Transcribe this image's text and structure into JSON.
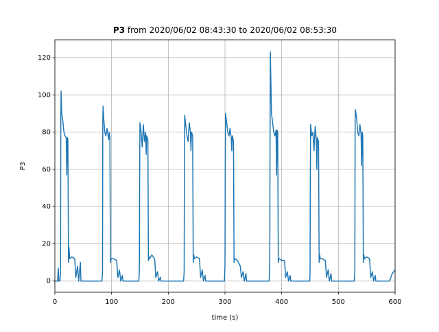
{
  "chart_data": {
    "type": "line",
    "title": [
      "P3",
      "from 2020/06/02 08:43:30 to 2020/06/02 08:53:30"
    ],
    "xlabel": "time (s)",
    "ylabel": "P3",
    "color": "#1f77b4",
    "grid": true,
    "xlim": [
      0,
      600
    ],
    "ylim": [
      -6,
      129.6
    ],
    "xticks": [
      0,
      100,
      200,
      300,
      400,
      500,
      600
    ],
    "yticks": [
      0,
      20,
      40,
      60,
      80,
      100,
      120
    ],
    "x": [
      0,
      5,
      6,
      7,
      9,
      10,
      10.5,
      11,
      12,
      14,
      16,
      18,
      20,
      21,
      22,
      23,
      24,
      25,
      26,
      30,
      35,
      37,
      40,
      42,
      45,
      46,
      55,
      83,
      84,
      84.5,
      85,
      86,
      88,
      90,
      92,
      94,
      95,
      96,
      97,
      98,
      99,
      100,
      104,
      109,
      111,
      114,
      116,
      119,
      120,
      146,
      148,
      149,
      149.5,
      150,
      152,
      154,
      156,
      158,
      160,
      161,
      162,
      164,
      165,
      166,
      167,
      171,
      176,
      178,
      181,
      183,
      186,
      187,
      226,
      227,
      228,
      228.5,
      229,
      231,
      233,
      235,
      237,
      239,
      240,
      241,
      243,
      244,
      245,
      246,
      250,
      255,
      257,
      260,
      262,
      265,
      266,
      298,
      299,
      300,
      300.5,
      301,
      303,
      305,
      307,
      309,
      311,
      312,
      313,
      315,
      316,
      317,
      318,
      322,
      327,
      329,
      332,
      334,
      337,
      338,
      377,
      378,
      379,
      379.5,
      380,
      382,
      384,
      386,
      388,
      390,
      391,
      392,
      393,
      394,
      395,
      396,
      400,
      405,
      407,
      410,
      412,
      415,
      416,
      449,
      449.5,
      450,
      450.5,
      451,
      453,
      455,
      457,
      459,
      461,
      462,
      463,
      465,
      466,
      467,
      468,
      472,
      477,
      479,
      482,
      484,
      487,
      488,
      527,
      528,
      529,
      529.5,
      530,
      532,
      534,
      536,
      538,
      540,
      541,
      542,
      543,
      544,
      545,
      546,
      550,
      555,
      557,
      560,
      562,
      565,
      566,
      590,
      595,
      600
    ],
    "values": [
      0,
      0,
      7,
      0,
      0,
      5,
      88,
      102,
      90,
      86,
      80,
      78,
      77,
      57,
      77,
      76,
      10,
      18,
      12,
      13,
      12,
      2,
      8,
      0,
      10,
      0,
      0,
      0,
      5,
      85,
      94,
      88,
      80,
      78,
      82,
      78,
      76,
      80,
      77,
      10,
      12,
      12,
      12,
      11,
      2,
      6,
      0,
      3,
      0,
      0,
      0,
      6,
      55,
      85,
      80,
      72,
      84,
      75,
      80,
      68,
      78,
      76,
      11,
      13,
      12,
      14,
      12,
      2,
      5,
      0,
      2,
      0,
      0,
      0,
      5,
      65,
      89,
      83,
      78,
      75,
      85,
      80,
      70,
      80,
      78,
      10,
      14,
      12,
      13,
      12,
      2,
      6,
      0,
      3,
      0,
      0,
      0,
      8,
      62,
      90,
      85,
      80,
      78,
      82,
      77,
      70,
      78,
      75,
      10,
      12,
      12,
      11,
      8,
      2,
      5,
      0,
      4,
      0,
      0,
      0,
      12,
      80,
      123,
      90,
      85,
      80,
      78,
      81,
      57,
      81,
      80,
      10,
      12,
      12,
      11,
      11,
      2,
      5,
      0,
      3,
      0,
      0,
      0,
      5,
      55,
      84,
      78,
      80,
      70,
      83,
      76,
      60,
      77,
      75,
      10,
      14,
      12,
      12,
      11,
      2,
      6,
      0,
      4,
      0,
      0,
      0,
      5,
      85,
      92,
      88,
      80,
      78,
      84,
      79,
      62,
      80,
      78,
      10,
      14,
      12,
      13,
      12,
      2,
      5,
      0,
      3,
      0,
      0,
      4,
      6
    ]
  }
}
